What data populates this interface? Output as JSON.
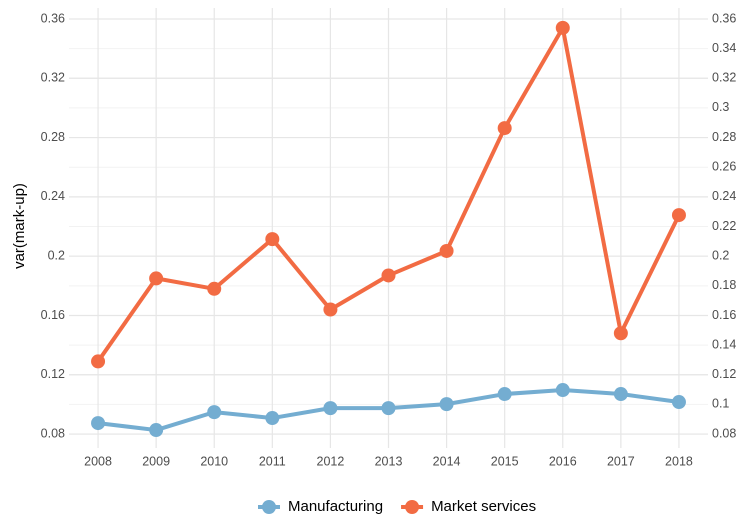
{
  "chart_data": {
    "type": "line",
    "y_label": "var(mark-up)",
    "categories": [
      "2008",
      "2009",
      "2010",
      "2011",
      "2012",
      "2013",
      "2014",
      "2015",
      "2016",
      "2017",
      "2018"
    ],
    "series": [
      {
        "name": "Manufacturing",
        "color": "#74add1",
        "values": [
          0.0874,
          0.0827,
          0.0948,
          0.0908,
          0.0975,
          0.0975,
          0.1002,
          0.107,
          0.1097,
          0.107,
          0.1016
        ]
      },
      {
        "name": "Market services",
        "color": "#f26b43",
        "values": [
          0.129,
          0.185,
          0.178,
          0.2115,
          0.164,
          0.187,
          0.2035,
          0.2864,
          0.354,
          0.148,
          0.2277
        ]
      }
    ],
    "ylim": [
      0.0706,
      0.3674
    ],
    "yticks": [
      0.08,
      0.12,
      0.16,
      0.2,
      0.24,
      0.28,
      0.32,
      0.36
    ],
    "y2lim": [
      0.0706,
      0.3674
    ],
    "y2ticks": [
      0.08,
      0.1,
      0.12,
      0.14,
      0.16,
      0.18,
      0.2,
      0.22,
      0.24,
      0.26,
      0.28,
      0.3,
      0.32,
      0.34,
      0.36
    ],
    "grid": true,
    "legend": "bottom"
  }
}
